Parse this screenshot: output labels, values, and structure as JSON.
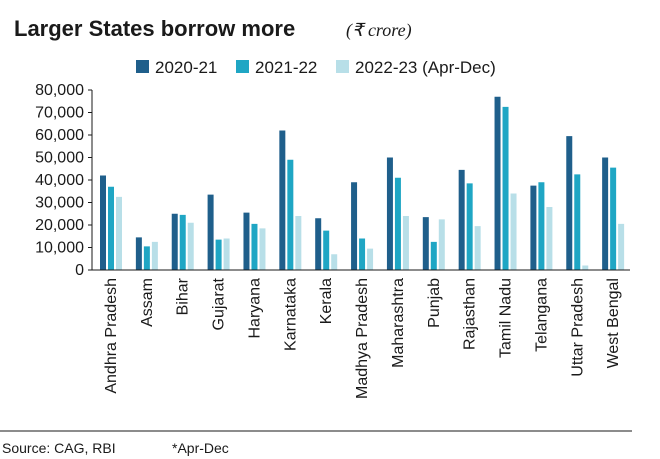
{
  "header": {
    "title": "Larger States borrow more",
    "unit": "(₹ crore)"
  },
  "footer": {
    "source": "Source: CAG, RBI",
    "note": "*Apr-Dec"
  },
  "colors": {
    "series": [
      "#1f5f8b",
      "#1fa6c4",
      "#b8dfe8"
    ],
    "axis": "#1a1a1a",
    "rule": "#1a1a1a"
  },
  "chart_data": {
    "type": "bar",
    "title": "Larger States borrow more",
    "subtitle": "(₹ crore)",
    "xlabel": "",
    "ylabel": "",
    "ylim": [
      0,
      80000
    ],
    "yticks": [
      0,
      10000,
      20000,
      30000,
      40000,
      50000,
      60000,
      70000,
      80000
    ],
    "ytick_labels": [
      "0",
      "10,000",
      "20,000",
      "30,000",
      "40,000",
      "50,000",
      "60,000",
      "70,000",
      "80,000"
    ],
    "grid": false,
    "legend": "top",
    "categories": [
      "Andhra Pradesh",
      "Assam",
      "Bihar",
      "Gujarat",
      "Haryana",
      "Karnataka",
      "Kerala",
      "Madhya Pradesh",
      "Maharashtra",
      "Punjab",
      "Rajasthan",
      "Tamil Nadu",
      "Telangana",
      "Uttar Pradesh",
      "West Bengal"
    ],
    "series": [
      {
        "name": "2020-21",
        "values": [
          42000,
          14500,
          25000,
          33500,
          25500,
          62000,
          23000,
          39000,
          50000,
          23500,
          44500,
          77000,
          37500,
          59500,
          50000
        ]
      },
      {
        "name": "2021-22",
        "values": [
          37000,
          10500,
          24500,
          13500,
          20500,
          49000,
          17500,
          14000,
          41000,
          12500,
          38500,
          72500,
          39000,
          42500,
          45500
        ]
      },
      {
        "name": "2022-23 (Apr-Dec)",
        "values": [
          32500,
          12500,
          21000,
          14000,
          18500,
          24000,
          7000,
          9500,
          24000,
          22500,
          19500,
          34000,
          28000,
          2000,
          20500
        ]
      }
    ]
  }
}
